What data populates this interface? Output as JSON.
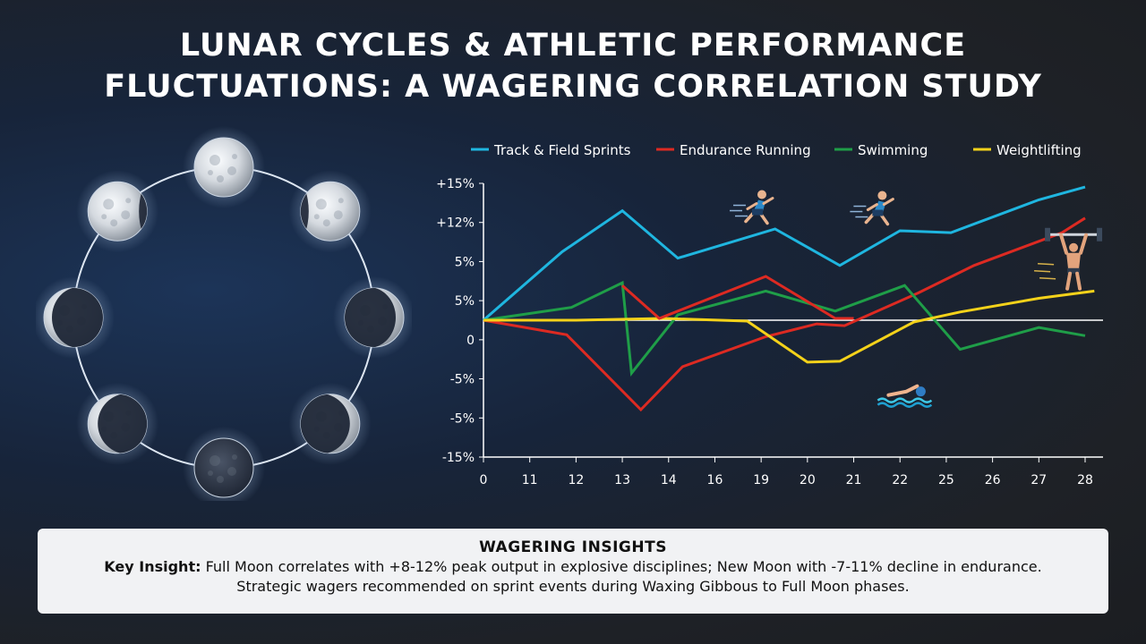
{
  "title": {
    "line1": "LUNAR CYCLES & ATHLETIC PERFORMANCE",
    "line2": "FLUCTUATIONS: A WAGERING CORRELATION STUDY"
  },
  "insights": {
    "heading": "WAGERING INSIGHTS",
    "key_label": "Key Insight:",
    "text": " Full Moon correlates with +8-12% peak output in explosive disciplines; New Moon with -7-11% decline in endurance. Strategic wagers recommended on sprint events during Waxing Gibbous to Full Moon phases."
  },
  "moon_phases": {
    "icon": "moon-phase-icon",
    "phases": [
      "full",
      "waning-gibbous",
      "last-quarter",
      "waning-crescent",
      "new",
      "waxing-crescent",
      "first-quarter",
      "waxing-gibbous"
    ]
  },
  "athlete_icons": [
    "sprinter-icon",
    "runner-icon",
    "weightlifter-icon",
    "swimmer-icon"
  ],
  "chart_data": {
    "type": "line",
    "x": [
      "0",
      "11",
      "12",
      "13",
      "14",
      "16",
      "19",
      "20",
      "21",
      "22",
      "25",
      "26",
      "27",
      "28"
    ],
    "yticks": [
      "+15%",
      "+12%",
      "5%",
      "5%",
      "0",
      "-5%",
      "-5%",
      "-15%"
    ],
    "ylim": [
      -15,
      15
    ],
    "grid": false,
    "legend_position": "top",
    "series": [
      {
        "name": "Track & Field Sprints",
        "color": "#1fb6e0",
        "points": [
          [
            0,
            0
          ],
          [
            1.7,
            7.5
          ],
          [
            3.0,
            12.0
          ],
          [
            4.2,
            6.8
          ],
          [
            6.3,
            10.0
          ],
          [
            7.7,
            6.0
          ],
          [
            9.0,
            9.8
          ],
          [
            10.1,
            9.6
          ],
          [
            12.0,
            13.2
          ],
          [
            13.0,
            14.6
          ]
        ]
      },
      {
        "name": "Endurance Running",
        "color": "#dd2a22",
        "points": [
          [
            0,
            0
          ],
          [
            1.8,
            -1.6
          ],
          [
            3.4,
            -9.8
          ],
          [
            4.3,
            -5.1
          ],
          [
            6.1,
            -1.8
          ],
          [
            7.2,
            -0.4
          ],
          [
            7.8,
            -0.6
          ],
          [
            9.4,
            3.0
          ],
          [
            10.6,
            6.0
          ],
          [
            12.5,
            9.6
          ],
          [
            13.0,
            11.2
          ]
        ]
      },
      {
        "name": "Swimming",
        "color": "#1f9e48",
        "points": [
          [
            0,
            0
          ],
          [
            1.9,
            1.4
          ],
          [
            3.0,
            4.1
          ],
          [
            3.2,
            -5.8
          ],
          [
            4.2,
            0.6
          ],
          [
            6.1,
            3.2
          ],
          [
            7.6,
            1.0
          ],
          [
            9.1,
            3.8
          ],
          [
            10.3,
            -3.2
          ],
          [
            12.0,
            -0.8
          ],
          [
            13.0,
            -1.7
          ]
        ]
      },
      {
        "name": "Weightlifting",
        "color": "#f4d21a",
        "points": [
          [
            0,
            0
          ],
          [
            2.0,
            0
          ],
          [
            3.9,
            0.2
          ],
          [
            5.7,
            -0.1
          ],
          [
            7.0,
            -4.6
          ],
          [
            7.7,
            -4.5
          ],
          [
            9.3,
            -0.2
          ],
          [
            10.3,
            0.9
          ],
          [
            12.0,
            2.4
          ],
          [
            13.2,
            3.2
          ]
        ]
      },
      {
        "name": "",
        "color": "#dd2a22",
        "points": [
          [
            3.0,
            3.8
          ],
          [
            3.8,
            0.2
          ],
          [
            4.2,
            1.0
          ],
          [
            6.1,
            4.8
          ],
          [
            7.6,
            0.2
          ],
          [
            8.0,
            0.2
          ]
        ]
      }
    ]
  }
}
